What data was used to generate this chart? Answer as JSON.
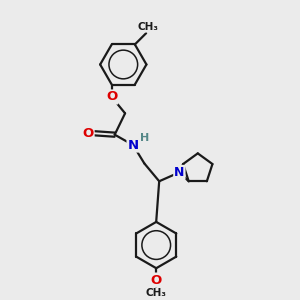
{
  "bg_color": "#ebebeb",
  "bond_color": "#1a1a1a",
  "bond_width": 1.6,
  "atom_colors": {
    "O": "#dd0000",
    "N": "#0000cc",
    "H": "#558888",
    "C": "#1a1a1a"
  }
}
